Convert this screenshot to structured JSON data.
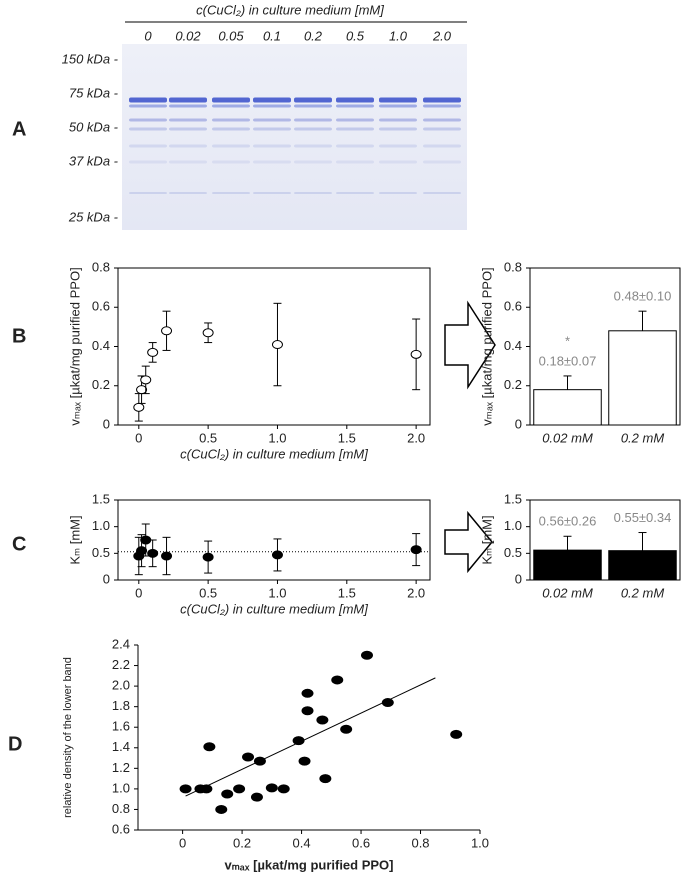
{
  "panel_labels": [
    "A",
    "B",
    "C",
    "D"
  ],
  "gel": {
    "title": "c(CuCl₂) in culture medium [mM]",
    "lanes": [
      "0",
      "0.02",
      "0.05",
      "0.1",
      "0.2",
      "0.5",
      "1.0",
      "2.0"
    ],
    "markers": [
      "150 kDa -",
      "75 kDa -",
      "50 kDa -",
      "37 kDa -",
      "25 kDa -"
    ]
  },
  "chart_data": [
    {
      "type": "scatter",
      "x_label": "c(CuCl₂) in culture medium [mM]",
      "y_label": "vₘₐₓ [µkat/mg purified PPO]",
      "x": [
        0,
        0.02,
        0.05,
        0.1,
        0.2,
        0.5,
        1.0,
        2.0
      ],
      "y": [
        0.09,
        0.18,
        0.23,
        0.37,
        0.48,
        0.47,
        0.41,
        0.36
      ],
      "errors": [
        0.07,
        0.07,
        0.07,
        0.05,
        0.1,
        0.05,
        0.21,
        0.18
      ],
      "color": "#ffffff",
      "box": true,
      "xlim": [
        -0.15,
        2.1
      ],
      "xticks": [
        0,
        0.5,
        {
          "value": 1,
          "label": "1.0"
        },
        1.5,
        {
          "value": 2,
          "label": "2.0"
        }
      ],
      "ylim": [
        0,
        0.8
      ],
      "yticks": [
        0,
        0.2,
        0.4,
        0.6,
        0.8
      ]
    },
    {
      "type": "bar",
      "y_label": "vₘₐₓ [µkat/mg purified PPO]",
      "categories": [
        "0.02 mM",
        "0.2 mM"
      ],
      "values": [
        0.18,
        0.48
      ],
      "errors": [
        0.07,
        0.1
      ],
      "value_labels": [
        "0.18±0.07",
        "0.48±0.10"
      ],
      "annotation": "*",
      "color": "#ffffff",
      "box": true,
      "ylim": [
        0,
        0.8
      ],
      "yticks": [
        0,
        0.2,
        0.4,
        0.6,
        0.8
      ]
    },
    {
      "type": "scatter",
      "x_label": "c(CuCl₂) in culture medium [mM]",
      "y_label": "Kₘ [mM]",
      "x": [
        0,
        0.02,
        0.05,
        0.1,
        0.2,
        0.5,
        1.0,
        2.0
      ],
      "y": [
        0.45,
        0.55,
        0.75,
        0.5,
        0.45,
        0.43,
        0.47,
        0.57
      ],
      "errors": [
        0.35,
        0.3,
        0.3,
        0.25,
        0.35,
        0.3,
        0.3,
        0.3
      ],
      "hline": 0.53,
      "color": "#000000",
      "box": true,
      "xlim": [
        -0.15,
        2.1
      ],
      "xticks": [
        0,
        0.5,
        {
          "value": 1,
          "label": "1.0"
        },
        1.5,
        {
          "value": 2,
          "label": "2.0"
        }
      ],
      "ylim": [
        0,
        1.5
      ],
      "yticks": [
        0,
        0.5,
        {
          "value": 1,
          "label": "1.0"
        },
        1.5
      ]
    },
    {
      "type": "bar",
      "y_label": "Kₘ [mM]",
      "categories": [
        "0.02 mM",
        "0.2 mM"
      ],
      "values": [
        0.56,
        0.55
      ],
      "errors": [
        0.26,
        0.34
      ],
      "value_labels": [
        "0.56±0.26",
        "0.55±0.34"
      ],
      "color": "#000000",
      "box": true,
      "ylim": [
        0,
        1.5
      ],
      "yticks": [
        0,
        0.5,
        {
          "value": 1,
          "label": "1.0"
        },
        1.5
      ]
    },
    {
      "type": "scatter",
      "x_label": "vₘₐₓ [µkat/mg purified PPO]",
      "y_label": "relative density of the lower band",
      "x": [
        0.01,
        0.06,
        0.08,
        0.09,
        0.13,
        0.15,
        0.19,
        0.22,
        0.25,
        0.26,
        0.3,
        0.34,
        0.39,
        0.41,
        0.42,
        0.42,
        0.47,
        0.48,
        0.52,
        0.55,
        0.62,
        0.69,
        0.92
      ],
      "y": [
        1.0,
        1.0,
        1.0,
        1.41,
        0.8,
        0.95,
        1.0,
        1.31,
        0.92,
        1.27,
        1.01,
        1.0,
        1.47,
        1.27,
        1.93,
        1.76,
        1.67,
        1.1,
        2.06,
        1.58,
        2.3,
        1.84,
        1.53
      ],
      "fit_line": {
        "x": [
          0.01,
          0.85
        ],
        "y": [
          0.93,
          2.08
        ]
      },
      "color": "#000000",
      "box": false,
      "xlim": [
        -0.15,
        1.0
      ],
      "xticks": [
        0,
        0.2,
        0.4,
        0.6,
        0.8,
        {
          "value": 1,
          "label": "1.0"
        }
      ],
      "ylim": [
        0.6,
        2.4
      ],
      "yticks": [
        0.6,
        0.8,
        {
          "value": 1,
          "label": "1.0"
        },
        1.2,
        1.4,
        1.6,
        1.8,
        {
          "value": 2,
          "label": "2.0"
        },
        2.2,
        2.4
      ]
    }
  ]
}
